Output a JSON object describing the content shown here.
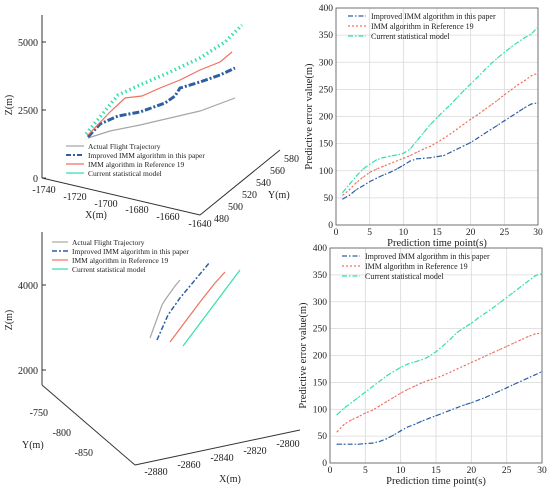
{
  "colors": {
    "actual": "#a6a6a6",
    "improved": "#2e5fa3",
    "ref19": "#f07060",
    "current": "#33e0a8",
    "axis": "#333333",
    "grid": "#d9d9d9"
  },
  "panels": {
    "top_left_3d": {
      "legend": [
        "Actual Flight Trajectory",
        "Improved IMM algorithm in this paper",
        "IMM algorithm in Reference 19",
        "Current statistical model"
      ],
      "zlabel": "Z(m)",
      "xlabel": "X(m)",
      "ylabel": "Y(m)",
      "z_ticks": [
        "5000",
        "2500",
        "0"
      ],
      "x_ticks": [
        "-1740",
        "-1720",
        "-1700",
        "-1680",
        "-1660",
        "-1640"
      ],
      "y_ticks": [
        "480",
        "500",
        "520",
        "540",
        "560",
        "580"
      ]
    },
    "bottom_left_3d": {
      "legend": [
        "Actual Flight Trajectory",
        "Improved IMM algorithm in this paper",
        "IMM algorithm in Reference 19",
        "Current statistical model"
      ],
      "zlabel": "Z(m)",
      "xlabel": "X(m)",
      "ylabel": "Y(m)",
      "z_ticks": [
        "4000",
        "2000"
      ],
      "x_ticks": [
        "-2880",
        "-2860",
        "-2840",
        "-2820",
        "-2800"
      ],
      "y_ticks": [
        "-750",
        "-800",
        "-850"
      ]
    }
  },
  "chart_data": [
    {
      "type": "line",
      "xlabel": "Prediction time point(s)",
      "ylabel": "Predictive error value(m)",
      "xlim": [
        0,
        30
      ],
      "ylim": [
        0,
        400
      ],
      "x_ticks": [
        0,
        5,
        10,
        15,
        20,
        25,
        30
      ],
      "y_ticks": [
        0,
        50,
        100,
        150,
        200,
        250,
        300,
        350,
        400
      ],
      "grid": true,
      "legend_position": "top-left",
      "x": [
        1,
        2,
        3,
        4,
        5,
        6,
        7,
        8,
        9,
        10,
        11,
        12,
        13,
        14,
        15,
        16,
        17,
        18,
        19,
        20,
        21,
        22,
        23,
        24,
        25,
        26,
        27,
        28,
        29,
        30
      ],
      "series": [
        {
          "name": "Improved IMM algorithm in this paper",
          "color": "#2e5fa3",
          "dash": "dashdot",
          "values": [
            48,
            55,
            65,
            72,
            80,
            86,
            92,
            97,
            103,
            110,
            118,
            122,
            123,
            124,
            126,
            128,
            134,
            140,
            146,
            152,
            160,
            168,
            176,
            184,
            192,
            200,
            208,
            216,
            223,
            225
          ]
        },
        {
          "name": "IMM algorithm in Reference 19",
          "color": "#f07060",
          "dash": "dot",
          "values": [
            55,
            65,
            78,
            88,
            97,
            103,
            108,
            113,
            118,
            123,
            128,
            134,
            140,
            145,
            152,
            160,
            168,
            177,
            186,
            195,
            203,
            212,
            221,
            230,
            240,
            249,
            258,
            266,
            275,
            280
          ]
        },
        {
          "name": "Current statistical model",
          "color": "#33e0a8",
          "dash": "dashdot",
          "values": [
            60,
            75,
            90,
            103,
            112,
            120,
            124,
            127,
            129,
            132,
            140,
            155,
            170,
            185,
            198,
            210,
            222,
            235,
            248,
            260,
            272,
            285,
            297,
            308,
            318,
            328,
            337,
            345,
            352,
            365
          ]
        }
      ]
    },
    {
      "type": "line",
      "xlabel": "Prediction time point(s)",
      "ylabel": "Predictive error value(m)",
      "xlim": [
        0,
        30
      ],
      "ylim": [
        0,
        400
      ],
      "x_ticks": [
        0,
        5,
        10,
        15,
        20,
        25,
        30
      ],
      "y_ticks": [
        0,
        50,
        100,
        150,
        200,
        250,
        300,
        350,
        400
      ],
      "grid": true,
      "legend_position": "top-left",
      "x": [
        1,
        2,
        3,
        4,
        5,
        6,
        7,
        8,
        9,
        10,
        11,
        12,
        13,
        14,
        15,
        16,
        17,
        18,
        19,
        20,
        21,
        22,
        23,
        24,
        25,
        26,
        27,
        28,
        29,
        30
      ],
      "series": [
        {
          "name": "Improved IMM algorithm in this paper",
          "color": "#2e5fa3",
          "dash": "dashdot",
          "values": [
            35,
            35,
            35,
            35,
            36,
            37,
            40,
            45,
            52,
            60,
            67,
            72,
            78,
            83,
            88,
            93,
            98,
            103,
            108,
            112,
            117,
            122,
            128,
            134,
            140,
            146,
            152,
            158,
            164,
            170
          ]
        },
        {
          "name": "IMM algorithm in Reference 19",
          "color": "#f07060",
          "dash": "dot",
          "values": [
            58,
            72,
            80,
            86,
            93,
            98,
            106,
            114,
            122,
            130,
            137,
            143,
            149,
            154,
            158,
            163,
            169,
            175,
            181,
            187,
            193,
            199,
            205,
            211,
            217,
            223,
            229,
            235,
            240,
            242
          ]
        },
        {
          "name": "Current statistical model",
          "color": "#33e0a8",
          "dash": "dashdot",
          "values": [
            90,
            102,
            112,
            122,
            132,
            142,
            152,
            162,
            170,
            178,
            184,
            188,
            192,
            198,
            207,
            218,
            230,
            243,
            252,
            260,
            270,
            279,
            288,
            298,
            308,
            318,
            328,
            338,
            348,
            353
          ]
        }
      ]
    }
  ]
}
